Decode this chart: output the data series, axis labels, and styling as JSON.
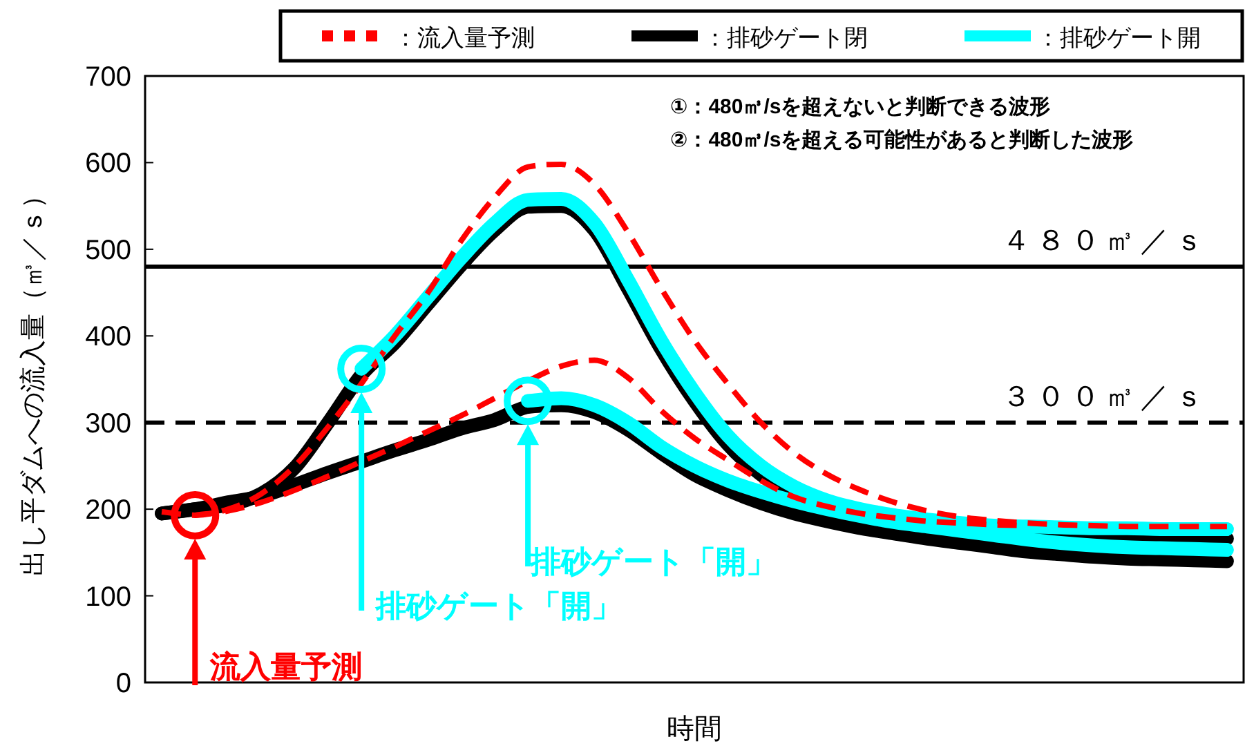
{
  "chart_data": {
    "type": "line",
    "xlabel": "時間",
    "ylabel": "出し平ダムへの流入量（㎥／ｓ）",
    "categories": [
      null,
      null,
      null,
      null,
      null,
      null,
      null,
      null,
      null,
      null,
      null,
      null,
      null,
      null,
      null,
      null,
      null,
      null,
      null,
      null,
      null,
      null,
      null,
      null,
      null,
      null,
      null,
      null,
      null,
      null,
      null,
      null,
      null
    ],
    "series": [
      {
        "name": "：流入量予測",
        "color": "#ff0000",
        "line_style": "dashed",
        "values": [
          197,
          193,
          200,
          218,
          250,
          295,
          345,
          400,
          450,
          510,
          560,
          595,
          598,
          575,
          520,
          455,
          395,
          345,
          300,
          265,
          240,
          222,
          208,
          198,
          191,
          187,
          184,
          182,
          181,
          180,
          180,
          180,
          180
        ]
      },
      {
        "name": "：排砂ゲート閉",
        "color": "#000000",
        "values": [
          195,
          200,
          205,
          218,
          248,
          300,
          355,
          392,
          437,
          482,
          522,
          549,
          550,
          522,
          455,
          385,
          325,
          275,
          240,
          217,
          201,
          191,
          184,
          179,
          175,
          172,
          170,
          168,
          167,
          167,
          166,
          166,
          166
        ]
      },
      {
        "name": "：排砂ゲート開",
        "color": "#00ffff",
        "values": [
          null,
          null,
          null,
          null,
          null,
          null,
          362,
          400,
          445,
          490,
          530,
          557,
          558,
          530,
          465,
          395,
          335,
          285,
          250,
          226,
          210,
          200,
          193,
          188,
          184,
          181,
          180,
          179,
          178,
          178,
          177,
          177,
          177
        ]
      },
      {
        "color": "#ff0000",
        "line_style": "dashed",
        "values": [
          null,
          193,
          198,
          208,
          222,
          238,
          255,
          272,
          290,
          308,
          328,
          348,
          365,
          372,
          352,
          314,
          282,
          257,
          233,
          214,
          203,
          195,
          190,
          186,
          184,
          182,
          181,
          null,
          null,
          null,
          null,
          null,
          null
        ]
      },
      {
        "color": "#000000",
        "values": [
          195,
          200,
          208,
          215,
          228,
          242,
          255,
          268,
          280,
          293,
          303,
          318,
          320,
          312,
          292,
          265,
          240,
          222,
          207,
          195,
          186,
          178,
          172,
          166,
          161,
          156,
          151,
          148,
          145,
          143,
          142,
          141,
          140
        ]
      },
      {
        "color": "#00ffff",
        "values": [
          null,
          null,
          null,
          null,
          null,
          null,
          null,
          null,
          null,
          null,
          null,
          325,
          328,
          320,
          300,
          272,
          250,
          233,
          220,
          209,
          200,
          192,
          185,
          180,
          175,
          170,
          165,
          161,
          158,
          156,
          155,
          154,
          153
        ]
      }
    ],
    "ylim": [
      0,
      700
    ],
    "yticks": [
      0,
      100,
      200,
      300,
      400,
      500,
      600,
      700
    ],
    "tick_labels": "y",
    "grid": false,
    "legend": "top right",
    "line_style": "solid",
    "ref_lines": [
      {
        "axis": "y",
        "value": 480,
        "label": "４８０㎥／ｓ",
        "color": "#000000",
        "line_style": "solid"
      },
      {
        "axis": "y",
        "value": 300,
        "label": "３００㎥／ｓ",
        "color": "#000000",
        "line_style": "dashed"
      }
    ],
    "annotations": [
      "①：480㎥/sを超えないと判断できる波形",
      "②：480㎥/sを超える可能性があると判断した波形",
      "流入量予測",
      "排砂ゲート「開」",
      "排砂ゲート「開」"
    ]
  }
}
